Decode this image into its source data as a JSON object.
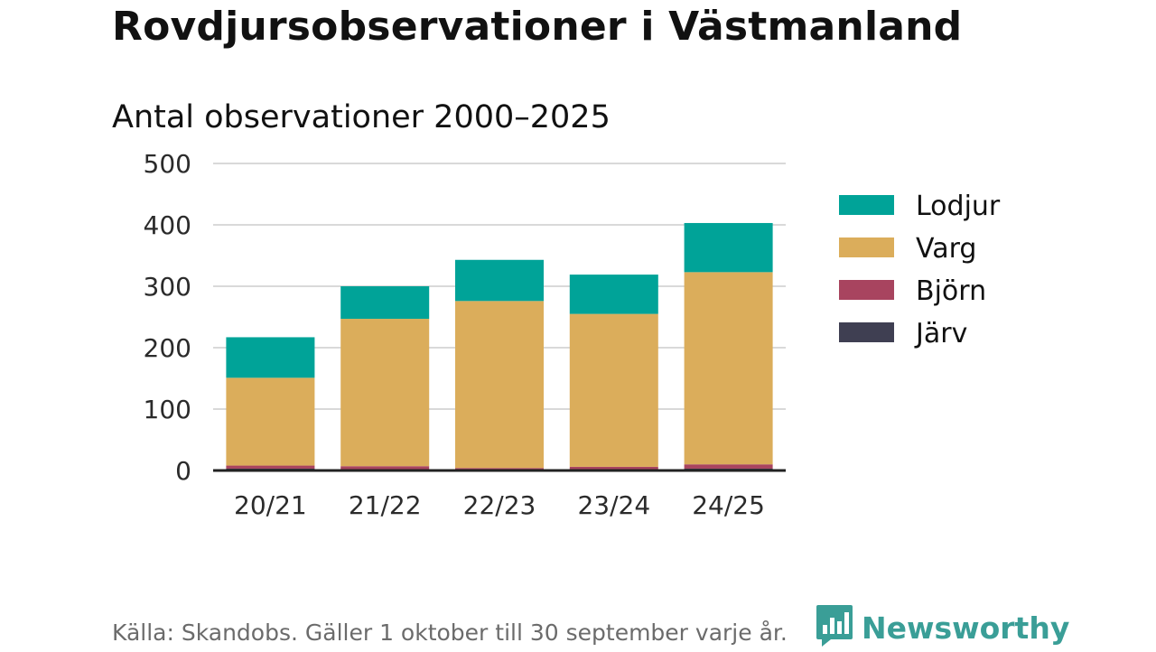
{
  "title": "Rovdjursobservationer i Västmanland",
  "source": "Källa: Skandobs. Gäller 1 oktober till 30 september varje år.",
  "brand": {
    "name": "Newsworthy",
    "icon": "newsworthy-logo-icon",
    "color": "#3a9e97"
  },
  "chart_data": {
    "type": "bar",
    "stacked": true,
    "title": "Antal observationer 2000–2025",
    "xlabel": "",
    "ylabel": "",
    "ylim": [
      0,
      500
    ],
    "yticks": [
      0,
      100,
      200,
      300,
      400,
      500
    ],
    "grid": true,
    "legend_position": "right",
    "categories": [
      "20/21",
      "21/22",
      "22/23",
      "23/24",
      "24/25"
    ],
    "series": [
      {
        "name": "Järv",
        "color": "#3f3f52",
        "values": [
          3,
          2,
          1,
          2,
          3
        ]
      },
      {
        "name": "Björn",
        "color": "#a8445f",
        "values": [
          5,
          5,
          3,
          4,
          7
        ]
      },
      {
        "name": "Varg",
        "color": "#dbad5b",
        "values": [
          143,
          240,
          272,
          249,
          313
        ]
      },
      {
        "name": "Lodjur",
        "color": "#00a398",
        "values": [
          66,
          53,
          67,
          64,
          80
        ]
      }
    ],
    "legend_order": [
      "Lodjur",
      "Varg",
      "Björn",
      "Järv"
    ]
  }
}
